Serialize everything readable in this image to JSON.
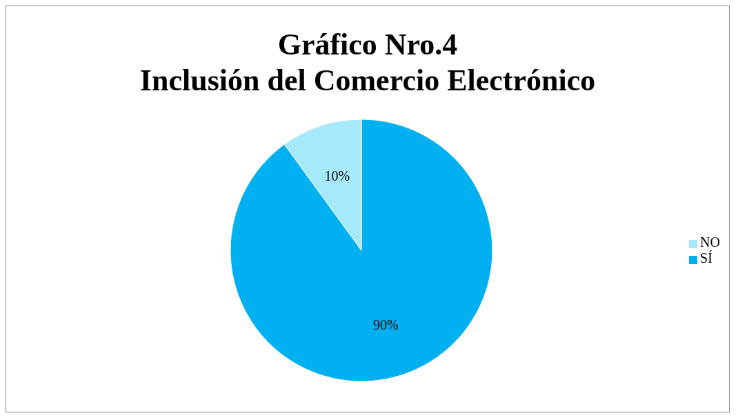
{
  "chart_data": {
    "type": "pie",
    "title": "Gráfico Nro.4",
    "subtitle": "Inclusión del Comercio Electrónico",
    "categories": [
      "SÍ",
      "NO"
    ],
    "values": [
      90,
      10
    ],
    "colors": [
      "#00b0f0",
      "#a6e9fb"
    ],
    "value_labels": [
      "90%",
      "10%"
    ],
    "legend": "right"
  }
}
